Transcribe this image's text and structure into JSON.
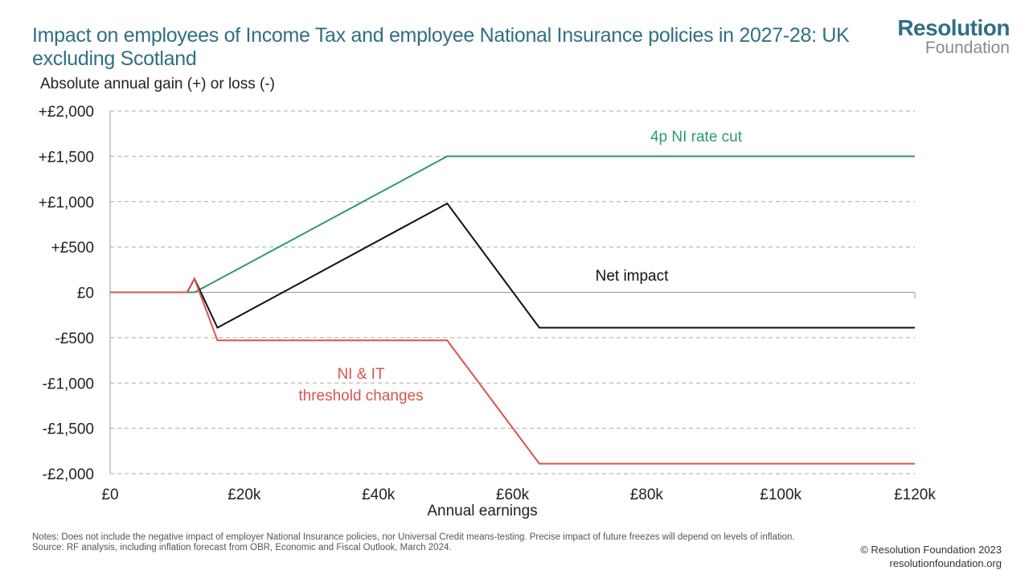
{
  "title": "Impact on employees of Income Tax and employee National Insurance policies in 2027-28: UK excluding Scotland",
  "logo": {
    "line1": "Resolution",
    "line2": "Foundation"
  },
  "colors": {
    "title": "#2f6f86",
    "green": "#2e9a6a",
    "black": "#111111",
    "red": "#d9534f",
    "grid": "#aaaaaa"
  },
  "chart_data": {
    "type": "line",
    "ylabel": "Absolute annual gain (+) or loss (-)",
    "xlabel": "Annual earnings",
    "xlim": [
      0,
      120000
    ],
    "ylim": [
      -2000,
      2000
    ],
    "yticks": [
      2000,
      1500,
      1000,
      500,
      0,
      -500,
      -1000,
      -1500,
      -2000
    ],
    "ytick_labels": [
      "+£2,000",
      "+£1,500",
      "+£1,000",
      "+£500",
      "£0",
      "-£500",
      "-£1,000",
      "-£1,500",
      "-£2,000"
    ],
    "xticks": [
      0,
      20000,
      40000,
      60000,
      80000,
      100000,
      120000
    ],
    "xtick_labels": [
      "£0",
      "£20k",
      "£40k",
      "£60k",
      "£80k",
      "£100k",
      "£120k"
    ],
    "grid": "horizontal dashed",
    "series": [
      {
        "name": "4p NI rate cut",
        "color": "#2e9a6a",
        "x": [
          0,
          11500,
          12600,
          50270,
          120000
        ],
        "y": [
          0,
          0,
          0,
          1500,
          1500
        ]
      },
      {
        "name": "Net impact",
        "color": "#111111",
        "x": [
          0,
          11500,
          12570,
          16000,
          50270,
          64000,
          120000
        ],
        "y": [
          0,
          0,
          150,
          -390,
          980,
          -390,
          -390
        ]
      },
      {
        "name": "NI & IT threshold changes",
        "color": "#d9534f",
        "x": [
          0,
          11500,
          12570,
          16000,
          50270,
          64000,
          120000
        ],
        "y": [
          0,
          0,
          150,
          -530,
          -530,
          -1890,
          -1890
        ]
      }
    ],
    "annotations": [
      {
        "text": "4p NI rate cut",
        "color": "#2e9a6a"
      },
      {
        "text": "Net impact",
        "color": "#111111"
      },
      {
        "text": "NI & IT",
        "color": "#d9534f"
      },
      {
        "text": "threshold changes",
        "color": "#d9534f"
      }
    ]
  },
  "notes": {
    "line1": "Notes: Does not include the negative impact of employer National Insurance policies, nor Universal Credit means-testing. Precise impact of future freezes will depend on levels of inflation.",
    "line2": "Source: RF analysis, including inflation forecast from OBR, Economic and Fiscal Outlook, March 2024."
  },
  "footer": {
    "copyright": "© Resolution Foundation 2023",
    "url": "resolutionfoundation.org"
  }
}
